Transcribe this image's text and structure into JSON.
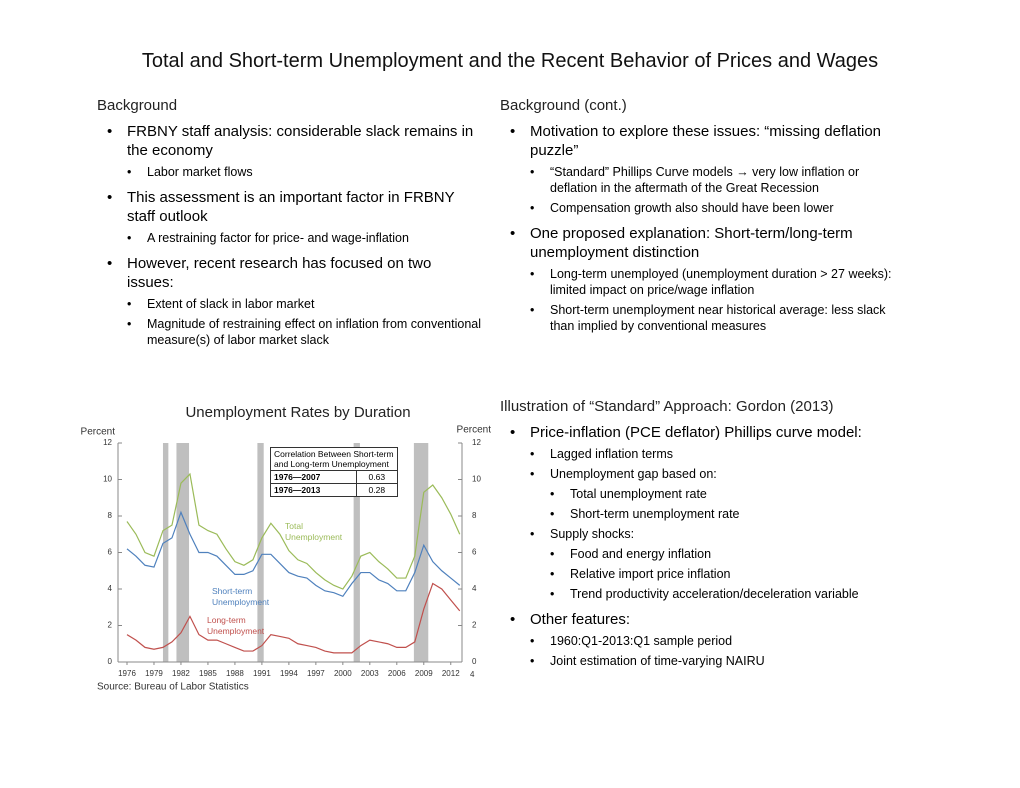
{
  "title": "Total and Short-term Unemployment and the Recent Behavior of Prices and Wages",
  "left_panel": {
    "heading": "Background",
    "bullets": [
      {
        "text": "FRBNY staff analysis: considerable slack remains in the economy",
        "sub": [
          {
            "text": "Labor market flows"
          }
        ]
      },
      {
        "text": "This assessment is an important factor in FRBNY staff outlook",
        "sub": [
          {
            "text": "A restraining factor for price- and wage-inflation"
          }
        ]
      },
      {
        "text": "However, recent research has focused on two issues:",
        "sub": [
          {
            "text": "Extent of slack in labor market"
          },
          {
            "text": "Magnitude of restraining effect on inflation from conventional measure(s) of labor market slack"
          }
        ]
      }
    ]
  },
  "right_panel": {
    "heading": "Background (cont.)",
    "bullets": [
      {
        "text": "Motivation to explore these issues: “missing deflation puzzle”",
        "sub": [
          {
            "text": "“Standard” Phillips Curve models → very low inflation or deflation in the aftermath of the Great Recession"
          },
          {
            "text": "Compensation growth also should have been lower"
          }
        ]
      },
      {
        "text": "One proposed explanation: Short-term/long-term unemployment distinction",
        "sub": [
          {
            "text": "Long-term unemployed (unemployment duration > 27 weeks): limited impact on price/wage inflation"
          },
          {
            "text": "Short-term unemployment near historical average: less slack than implied by conventional measures"
          }
        ]
      }
    ]
  },
  "bottom_right": {
    "heading": "Illustration of “Standard” Approach: Gordon (2013)",
    "bullets": [
      {
        "text": "Price-inflation (PCE deflator) Phillips curve model:",
        "sub": [
          {
            "text": "Lagged inflation terms"
          },
          {
            "text": "Unemployment gap based on:",
            "sub": [
              {
                "text": "Total unemployment rate"
              },
              {
                "text": "Short-term unemployment rate"
              }
            ]
          },
          {
            "text": "Supply shocks:",
            "sub": [
              {
                "text": "Food and energy inflation"
              },
              {
                "text": "Relative import price inflation"
              },
              {
                "text": "Trend productivity acceleration/deceleration variable"
              }
            ]
          }
        ]
      },
      {
        "text": "Other features:",
        "sub": [
          {
            "text": "1960:Q1-2013:Q1 sample period"
          },
          {
            "text": "Joint estimation of time-varying NAIRU"
          }
        ]
      }
    ]
  },
  "chart_data": {
    "type": "line",
    "title": "Unemployment Rates by Duration",
    "y_label": "Percent",
    "y2_label": "Percent",
    "x": [
      1976,
      1977,
      1978,
      1979,
      1980,
      1981,
      1982,
      1983,
      1984,
      1985,
      1986,
      1987,
      1988,
      1989,
      1990,
      1991,
      1992,
      1993,
      1994,
      1995,
      1996,
      1997,
      1998,
      1999,
      2000,
      2001,
      2002,
      2003,
      2004,
      2005,
      2006,
      2007,
      2008,
      2009,
      2010,
      2011,
      2012,
      2013
    ],
    "xlim": [
      1975,
      2013.25
    ],
    "xticks": [
      1976,
      1979,
      1982,
      1985,
      1988,
      1991,
      1994,
      1997,
      2000,
      2003,
      2006,
      2009,
      2012
    ],
    "ylim": [
      0,
      12
    ],
    "yticks": [
      0,
      2,
      4,
      6,
      8,
      10,
      12
    ],
    "y2lim": [
      0,
      12
    ],
    "y2ticks": [
      0,
      2,
      4,
      6,
      8,
      10,
      12
    ],
    "shaded_periods": [
      [
        1980.0,
        1980.6
      ],
      [
        1981.5,
        1982.9
      ],
      [
        1990.5,
        1991.2
      ],
      [
        2001.2,
        2001.9
      ],
      [
        2007.9,
        2009.5
      ]
    ],
    "series": [
      {
        "name": "Total Unemployment",
        "color": "#9bbb59",
        "values": [
          7.7,
          7.0,
          6.0,
          5.8,
          7.2,
          7.5,
          9.8,
          10.3,
          7.5,
          7.2,
          7.0,
          6.2,
          5.5,
          5.3,
          5.6,
          6.8,
          7.6,
          7.0,
          6.1,
          5.6,
          5.4,
          4.9,
          4.5,
          4.2,
          4.0,
          4.7,
          5.8,
          6.0,
          5.5,
          5.1,
          4.6,
          4.6,
          5.8,
          9.3,
          9.7,
          9.0,
          8.1,
          7.0
        ]
      },
      {
        "name": "Short-term Unemployment",
        "color": "#4f81bd",
        "values": [
          6.2,
          5.8,
          5.3,
          5.2,
          6.5,
          6.8,
          8.2,
          7.0,
          6.0,
          6.0,
          5.8,
          5.3,
          4.8,
          4.8,
          5.0,
          5.9,
          5.9,
          5.4,
          4.9,
          4.7,
          4.6,
          4.2,
          3.9,
          3.8,
          3.6,
          4.3,
          4.9,
          4.9,
          4.5,
          4.3,
          3.9,
          3.9,
          4.9,
          6.4,
          5.5,
          5.0,
          4.6,
          4.2
        ]
      },
      {
        "name": "Long-term Unemployment",
        "color": "#c0504d",
        "values": [
          1.5,
          1.2,
          0.8,
          0.7,
          0.8,
          1.1,
          1.6,
          2.5,
          1.5,
          1.2,
          1.2,
          1.0,
          0.8,
          0.6,
          0.6,
          0.9,
          1.5,
          1.4,
          1.3,
          1.0,
          0.9,
          0.8,
          0.6,
          0.5,
          0.5,
          0.5,
          0.9,
          1.2,
          1.1,
          1.0,
          0.8,
          0.8,
          1.1,
          2.9,
          4.3,
          4.0,
          3.4,
          2.8
        ]
      }
    ],
    "table": {
      "title": "Correlation Between Short-term and Long-term Unemployment",
      "rows": [
        [
          "1976—2007",
          0.63
        ],
        [
          "1976—2013",
          0.28
        ]
      ]
    },
    "source": "Source: Bureau of Labor Statistics"
  },
  "page_number": "4"
}
